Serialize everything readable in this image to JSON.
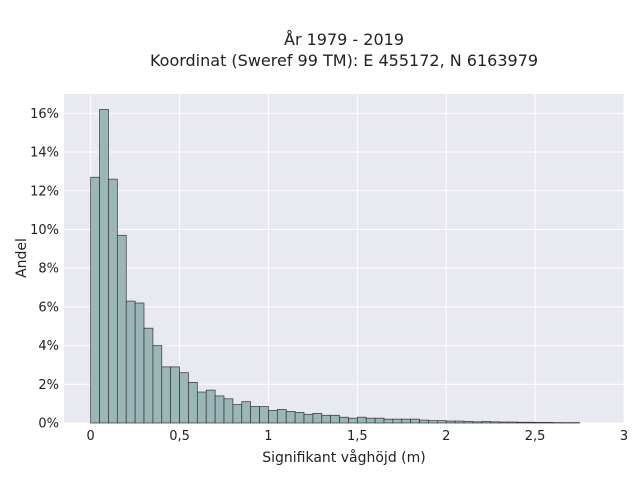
{
  "chart_data": {
    "type": "bar",
    "title": "År 1979 - 2019",
    "subtitle": "Koordinat (Sweref 99 TM): E 455172, N 6163979",
    "xlabel": "Signifikant våghöjd (m)",
    "ylabel": "Andel",
    "xlim": [
      -0.15,
      3.0
    ],
    "ylim": [
      0,
      17
    ],
    "bin_width": 0.05,
    "grid": true,
    "x_ticks": [
      0,
      0.5,
      1,
      1.5,
      2,
      2.5,
      3
    ],
    "x_tick_labels": [
      "0",
      "0,5",
      "1",
      "1,5",
      "2",
      "2,5",
      "3"
    ],
    "y_ticks": [
      0,
      2,
      4,
      6,
      8,
      10,
      12,
      14,
      16
    ],
    "y_tick_labels": [
      "0%",
      "2%",
      "4%",
      "6%",
      "8%",
      "10%",
      "12%",
      "14%",
      "16%"
    ],
    "bin_starts": [
      0,
      0.05,
      0.1,
      0.15,
      0.2,
      0.25,
      0.3,
      0.35,
      0.4,
      0.45,
      0.5,
      0.55,
      0.6,
      0.65,
      0.7,
      0.75,
      0.8,
      0.85,
      0.9,
      0.95,
      1.0,
      1.05,
      1.1,
      1.15,
      1.2,
      1.25,
      1.3,
      1.35,
      1.4,
      1.45,
      1.5,
      1.55,
      1.6,
      1.65,
      1.7,
      1.75,
      1.8,
      1.85,
      1.9,
      1.95,
      2.0,
      2.05,
      2.1,
      2.15,
      2.2,
      2.25,
      2.3,
      2.35,
      2.4,
      2.45,
      2.5,
      2.55,
      2.6,
      2.65,
      2.7
    ],
    "values": [
      12.7,
      16.2,
      12.6,
      9.7,
      6.3,
      6.2,
      4.9,
      4.0,
      2.9,
      2.9,
      2.6,
      2.1,
      1.6,
      1.7,
      1.4,
      1.25,
      0.95,
      1.1,
      0.85,
      0.85,
      0.65,
      0.7,
      0.6,
      0.55,
      0.45,
      0.5,
      0.4,
      0.4,
      0.3,
      0.25,
      0.3,
      0.25,
      0.25,
      0.2,
      0.2,
      0.2,
      0.2,
      0.15,
      0.12,
      0.12,
      0.1,
      0.1,
      0.08,
      0.06,
      0.08,
      0.06,
      0.05,
      0.05,
      0.04,
      0.04,
      0.03,
      0.03,
      0.02,
      0.02,
      0.02
    ],
    "bar_color": "#9bb6b6",
    "background_color": "#e9e9f1"
  }
}
